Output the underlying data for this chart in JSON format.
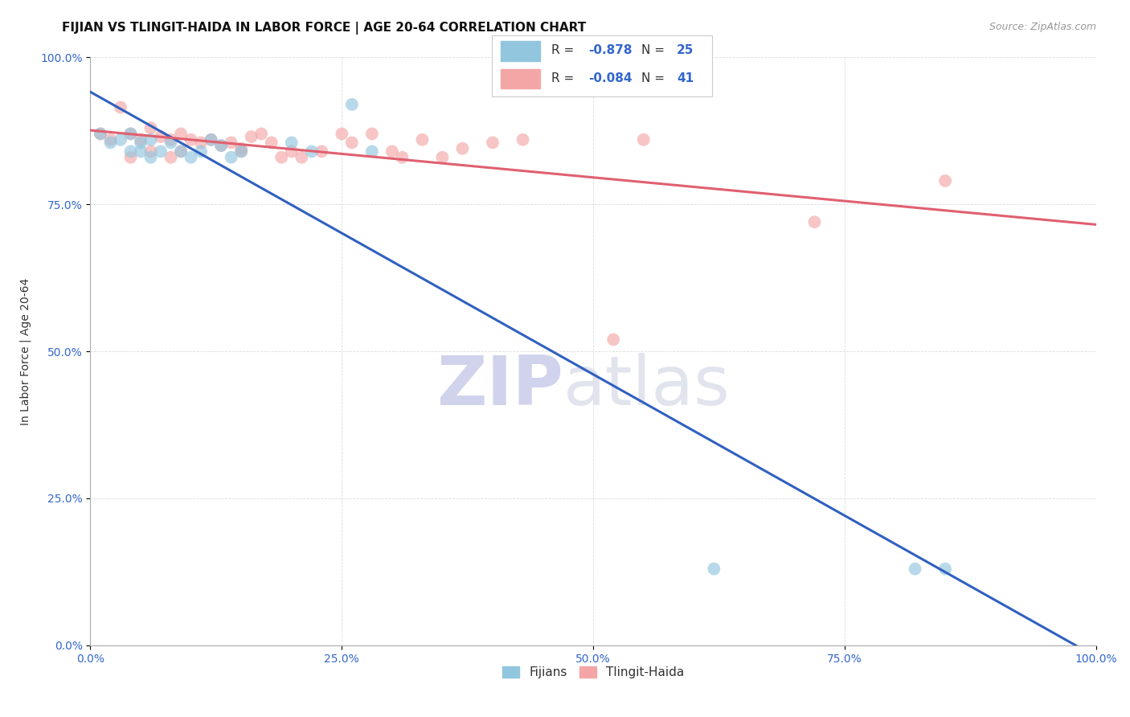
{
  "title": "FIJIAN VS TLINGIT-HAIDA IN LABOR FORCE | AGE 20-64 CORRELATION CHART",
  "source": "Source: ZipAtlas.com",
  "ylabel": "In Labor Force | Age 20-64",
  "xlim": [
    0,
    1
  ],
  "ylim": [
    0,
    1
  ],
  "xticks": [
    0.0,
    0.25,
    0.5,
    0.75,
    1.0
  ],
  "yticks": [
    0.0,
    0.25,
    0.5,
    0.75,
    1.0
  ],
  "xticklabels": [
    "0.0%",
    "25.0%",
    "50.0%",
    "75.0%",
    "100.0%"
  ],
  "yticklabels": [
    "0.0%",
    "25.0%",
    "50.0%",
    "75.0%",
    "100.0%"
  ],
  "fijian_color": "#92c5de",
  "tlingit_color": "#f4a6a6",
  "fijian_line_color": "#3060c0",
  "tlingit_line_color": "#e06070",
  "fijian_R": "-0.878",
  "fijian_N": "25",
  "tlingit_R": "-0.084",
  "tlingit_N": "41",
  "legend_label1": "Fijians",
  "legend_label2": "Tlingit-Haida",
  "fijian_x": [
    0.01,
    0.02,
    0.03,
    0.04,
    0.04,
    0.05,
    0.05,
    0.06,
    0.06,
    0.07,
    0.08,
    0.09,
    0.1,
    0.11,
    0.12,
    0.13,
    0.14,
    0.15,
    0.2,
    0.22,
    0.26,
    0.28,
    0.62,
    0.82,
    0.85
  ],
  "fijian_y": [
    0.87,
    0.855,
    0.86,
    0.84,
    0.87,
    0.855,
    0.84,
    0.83,
    0.86,
    0.84,
    0.855,
    0.84,
    0.83,
    0.84,
    0.86,
    0.85,
    0.83,
    0.84,
    0.855,
    0.84,
    0.92,
    0.84,
    0.13,
    0.13,
    0.13
  ],
  "tlingit_x": [
    0.01,
    0.02,
    0.03,
    0.04,
    0.04,
    0.05,
    0.06,
    0.06,
    0.07,
    0.08,
    0.08,
    0.09,
    0.09,
    0.1,
    0.11,
    0.12,
    0.13,
    0.14,
    0.15,
    0.15,
    0.16,
    0.17,
    0.18,
    0.19,
    0.2,
    0.21,
    0.23,
    0.25,
    0.26,
    0.28,
    0.3,
    0.31,
    0.33,
    0.35,
    0.37,
    0.4,
    0.43,
    0.52,
    0.55,
    0.72,
    0.85
  ],
  "tlingit_y": [
    0.87,
    0.86,
    0.915,
    0.87,
    0.83,
    0.86,
    0.88,
    0.84,
    0.865,
    0.86,
    0.83,
    0.87,
    0.84,
    0.86,
    0.855,
    0.86,
    0.85,
    0.855,
    0.845,
    0.84,
    0.865,
    0.87,
    0.855,
    0.83,
    0.84,
    0.83,
    0.84,
    0.87,
    0.855,
    0.87,
    0.84,
    0.83,
    0.86,
    0.83,
    0.845,
    0.855,
    0.86,
    0.52,
    0.86,
    0.72,
    0.79
  ],
  "grid_color": "#cccccc",
  "title_fontsize": 11,
  "axis_fontsize": 10,
  "tick_fontsize": 10,
  "tick_color": "#3366cc",
  "bg_color": "#ffffff",
  "scatter_size": 130,
  "scatter_alpha": 0.65,
  "watermark_zip_color": "#c8cce8",
  "watermark_atlas_color": "#d8dce8"
}
